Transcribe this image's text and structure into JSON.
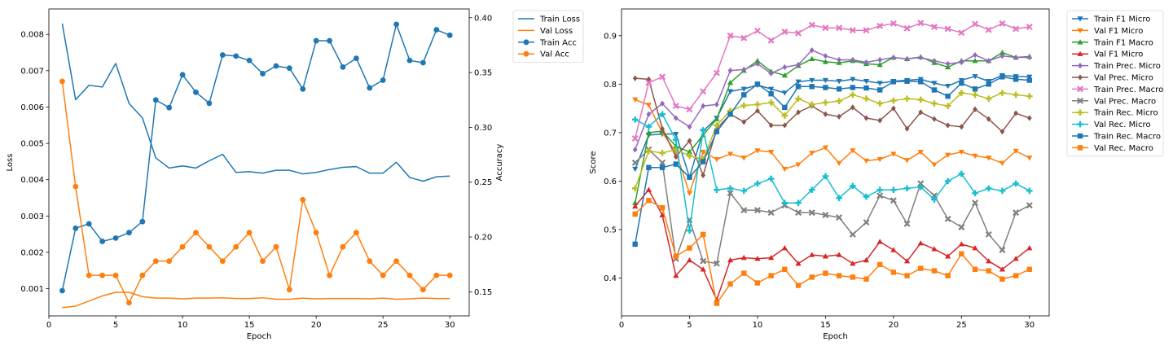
{
  "chart_data": [
    {
      "type": "line",
      "xlabel": "Epoch",
      "ylabel": "Loss",
      "ylabel_right": "Accuracy",
      "xlim": [
        0,
        31.45
      ],
      "xticks": [
        0,
        5,
        10,
        15,
        20,
        25,
        30
      ],
      "ylim": [
        0.00025,
        0.0087
      ],
      "yticks": [
        0.001,
        0.002,
        0.003,
        0.004,
        0.005,
        0.006,
        0.007,
        0.008
      ],
      "ylim_right": [
        0.128,
        0.408
      ],
      "yticks_right": [
        0.15,
        0.2,
        0.25,
        0.3,
        0.35,
        0.4
      ],
      "legend_position": "outside-top-right",
      "x": [
        1,
        2,
        3,
        4,
        5,
        6,
        7,
        8,
        9,
        10,
        11,
        12,
        13,
        14,
        15,
        16,
        17,
        18,
        19,
        20,
        21,
        22,
        23,
        24,
        25,
        26,
        27,
        28,
        29,
        30
      ],
      "series": [
        {
          "name": "Train Loss",
          "axis": "left",
          "marker": "none",
          "color": "#1f77b4",
          "values": [
            0.0083,
            0.0062,
            0.0066,
            0.00655,
            0.0072,
            0.0061,
            0.0057,
            0.0046,
            0.00432,
            0.00438,
            0.00432,
            0.00452,
            0.0047,
            0.0042,
            0.00422,
            0.00418,
            0.00426,
            0.00426,
            0.00416,
            0.0042,
            0.00428,
            0.00434,
            0.00436,
            0.00418,
            0.00418,
            0.00448,
            0.00406,
            0.00396,
            0.00408,
            0.0041
          ]
        },
        {
          "name": "Val Loss",
          "axis": "left",
          "marker": "none",
          "color": "#ff7f0e",
          "values": [
            0.00048,
            0.00052,
            0.00066,
            0.0008,
            0.0009,
            0.0009,
            0.00078,
            0.00074,
            0.00074,
            0.00072,
            0.00074,
            0.00074,
            0.00075,
            0.00073,
            0.00073,
            0.00075,
            0.00071,
            0.00071,
            0.00074,
            0.00072,
            0.00073,
            0.00073,
            0.00073,
            0.00072,
            0.00074,
            0.00071,
            0.00072,
            0.00074,
            0.00073,
            0.00073
          ]
        },
        {
          "name": "Train Acc",
          "axis": "right",
          "marker": "circle",
          "color": "#1f77b4",
          "values": [
            0.151,
            0.208,
            0.212,
            0.196,
            0.199,
            0.204,
            0.214,
            0.325,
            0.318,
            0.348,
            0.332,
            0.322,
            0.366,
            0.365,
            0.361,
            0.349,
            0.356,
            0.354,
            0.335,
            0.379,
            0.379,
            0.355,
            0.363,
            0.336,
            0.343,
            0.394,
            0.361,
            0.359,
            0.389,
            0.384
          ]
        },
        {
          "name": "Val Acc",
          "axis": "right",
          "marker": "circle",
          "color": "#ff7f0e",
          "values": [
            0.342,
            0.246,
            0.165,
            0.165,
            0.165,
            0.14,
            0.165,
            0.178,
            0.178,
            0.191,
            0.204,
            0.191,
            0.178,
            0.191,
            0.204,
            0.178,
            0.191,
            0.152,
            0.234,
            0.204,
            0.165,
            0.191,
            0.204,
            0.178,
            0.165,
            0.178,
            0.165,
            0.152,
            0.165,
            0.165
          ]
        }
      ]
    },
    {
      "type": "line",
      "xlabel": "Epoch",
      "ylabel": "Score",
      "xlim": [
        0,
        31.45
      ],
      "xticks": [
        0,
        5,
        10,
        15,
        20,
        25,
        30
      ],
      "ylim": [
        0.322,
        0.955
      ],
      "yticks": [
        0.4,
        0.5,
        0.6,
        0.7,
        0.8,
        0.9
      ],
      "legend_position": "outside-top-right",
      "x": [
        1,
        2,
        3,
        4,
        5,
        6,
        7,
        8,
        9,
        10,
        11,
        12,
        13,
        14,
        15,
        16,
        17,
        18,
        19,
        20,
        21,
        22,
        23,
        24,
        25,
        26,
        27,
        28,
        29,
        30
      ],
      "series": [
        {
          "name": "Train F1 Micro",
          "marker": "triangle-down",
          "color": "#1f77b4",
          "values": [
            0.625,
            0.695,
            0.697,
            0.697,
            0.608,
            0.703,
            0.73,
            0.785,
            0.79,
            0.798,
            0.79,
            0.782,
            0.805,
            0.808,
            0.808,
            0.806,
            0.81,
            0.806,
            0.802,
            0.806,
            0.808,
            0.81,
            0.802,
            0.796,
            0.808,
            0.816,
            0.806,
            0.818,
            0.816,
            0.815
          ]
        },
        {
          "name": "Val F1 Micro",
          "marker": "triangle-down",
          "color": "#ff7f0e",
          "values": [
            0.768,
            0.757,
            0.7,
            0.66,
            0.575,
            0.66,
            0.645,
            0.656,
            0.648,
            0.663,
            0.66,
            0.625,
            0.634,
            0.658,
            0.669,
            0.637,
            0.663,
            0.642,
            0.645,
            0.656,
            0.643,
            0.66,
            0.634,
            0.654,
            0.66,
            0.652,
            0.648,
            0.637,
            0.662,
            0.648
          ]
        },
        {
          "name": "Train F1 Macro",
          "marker": "triangle-up",
          "color": "#2ca02c",
          "values": [
            0.555,
            0.7,
            0.703,
            0.672,
            0.66,
            0.695,
            0.728,
            0.803,
            0.828,
            0.848,
            0.826,
            0.818,
            0.838,
            0.852,
            0.846,
            0.844,
            0.848,
            0.842,
            0.84,
            0.855,
            0.852,
            0.856,
            0.844,
            0.835,
            0.848,
            0.848,
            0.848,
            0.865,
            0.855,
            0.857
          ]
        },
        {
          "name": "Val F1 Micro",
          "marker": "triangle-up",
          "color": "#d62728",
          "values": [
            0.548,
            0.582,
            0.53,
            0.405,
            0.437,
            0.418,
            0.355,
            0.437,
            0.442,
            0.44,
            0.442,
            0.462,
            0.43,
            0.448,
            0.445,
            0.448,
            0.43,
            0.437,
            0.475,
            0.458,
            0.435,
            0.472,
            0.46,
            0.445,
            0.47,
            0.462,
            0.435,
            0.418,
            0.44,
            0.462
          ]
        },
        {
          "name": "Train Prec. Micro",
          "marker": "diamond",
          "color": "#9467bd",
          "values": [
            0.665,
            0.738,
            0.76,
            0.73,
            0.712,
            0.755,
            0.758,
            0.828,
            0.83,
            0.842,
            0.822,
            0.835,
            0.84,
            0.87,
            0.858,
            0.85,
            0.85,
            0.845,
            0.85,
            0.855,
            0.852,
            0.855,
            0.848,
            0.842,
            0.845,
            0.86,
            0.848,
            0.858,
            0.855,
            0.855
          ]
        },
        {
          "name": "Val Prec. Micro",
          "marker": "diamond",
          "color": "#8c564b",
          "values": [
            0.812,
            0.81,
            0.708,
            0.65,
            0.683,
            0.612,
            0.708,
            0.738,
            0.722,
            0.745,
            0.715,
            0.715,
            0.742,
            0.755,
            0.738,
            0.733,
            0.752,
            0.73,
            0.725,
            0.75,
            0.708,
            0.742,
            0.728,
            0.715,
            0.712,
            0.748,
            0.728,
            0.702,
            0.74,
            0.73
          ]
        },
        {
          "name": "Train Prec. Macro",
          "marker": "x",
          "color": "#e377c2",
          "values": [
            0.688,
            0.803,
            0.815,
            0.755,
            0.748,
            0.785,
            0.823,
            0.9,
            0.895,
            0.91,
            0.89,
            0.908,
            0.905,
            0.922,
            0.916,
            0.916,
            0.911,
            0.911,
            0.92,
            0.925,
            0.915,
            0.926,
            0.918,
            0.914,
            0.906,
            0.924,
            0.912,
            0.925,
            0.914,
            0.918
          ]
        },
        {
          "name": "Val Prec. Macro",
          "marker": "x",
          "color": "#7f7f7f",
          "values": [
            0.638,
            0.665,
            0.638,
            0.44,
            0.52,
            0.435,
            0.43,
            0.575,
            0.54,
            0.54,
            0.535,
            0.55,
            0.535,
            0.535,
            0.53,
            0.525,
            0.49,
            0.515,
            0.57,
            0.56,
            0.512,
            0.595,
            0.57,
            0.522,
            0.505,
            0.555,
            0.49,
            0.458,
            0.535,
            0.55
          ]
        },
        {
          "name": "Train Rec. Micro",
          "marker": "plus",
          "color": "#bcbd22",
          "values": [
            0.585,
            0.662,
            0.658,
            0.665,
            0.652,
            0.645,
            0.715,
            0.745,
            0.756,
            0.758,
            0.762,
            0.735,
            0.77,
            0.758,
            0.762,
            0.765,
            0.778,
            0.77,
            0.76,
            0.766,
            0.77,
            0.768,
            0.76,
            0.755,
            0.782,
            0.778,
            0.77,
            0.782,
            0.778,
            0.775
          ]
        },
        {
          "name": "Val Rec. Micro",
          "marker": "plus",
          "color": "#17becf",
          "values": [
            0.727,
            0.712,
            0.738,
            0.685,
            0.498,
            0.705,
            0.582,
            0.585,
            0.58,
            0.595,
            0.605,
            0.555,
            0.555,
            0.582,
            0.61,
            0.565,
            0.59,
            0.568,
            0.582,
            0.582,
            0.585,
            0.588,
            0.562,
            0.6,
            0.615,
            0.575,
            0.585,
            0.58,
            0.595,
            0.58
          ]
        },
        {
          "name": "Train Rec. Macro",
          "marker": "square",
          "color": "#1f77b4",
          "values": [
            0.47,
            0.628,
            0.628,
            0.635,
            0.608,
            0.64,
            0.702,
            0.738,
            0.778,
            0.8,
            0.78,
            0.752,
            0.795,
            0.795,
            0.793,
            0.79,
            0.793,
            0.792,
            0.788,
            0.805,
            0.806,
            0.805,
            0.788,
            0.775,
            0.802,
            0.79,
            0.8,
            0.815,
            0.81,
            0.808
          ]
        },
        {
          "name": "Val Rec. Macro",
          "marker": "square",
          "color": "#ff7f0e",
          "values": [
            0.532,
            0.56,
            0.545,
            0.445,
            0.462,
            0.49,
            0.348,
            0.388,
            0.41,
            0.39,
            0.405,
            0.418,
            0.385,
            0.402,
            0.41,
            0.405,
            0.402,
            0.398,
            0.428,
            0.412,
            0.405,
            0.42,
            0.415,
            0.405,
            0.45,
            0.418,
            0.415,
            0.398,
            0.405,
            0.418
          ]
        }
      ]
    }
  ]
}
